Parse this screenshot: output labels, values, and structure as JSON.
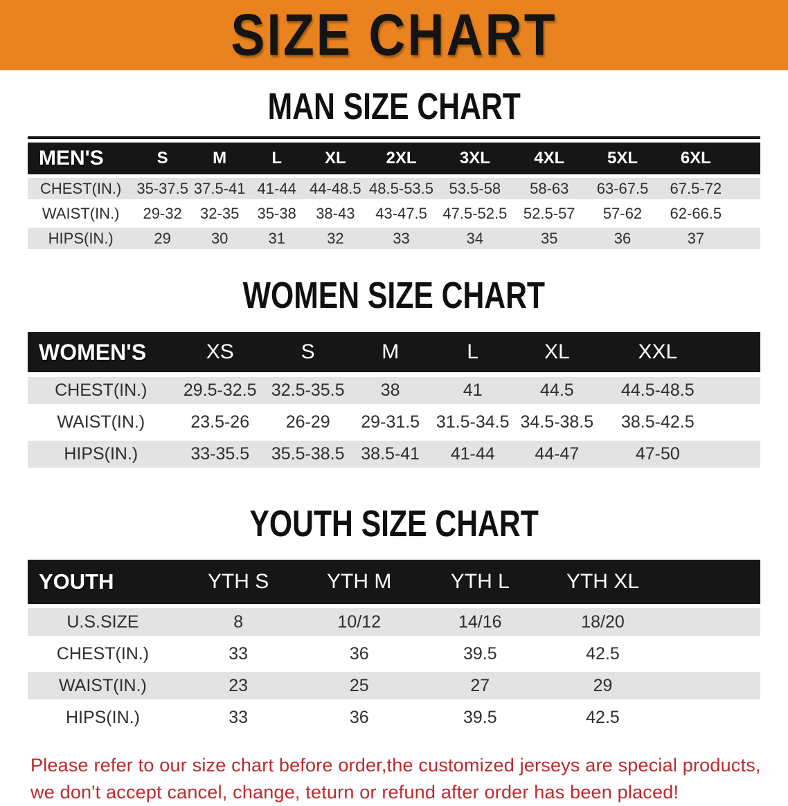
{
  "banner": {
    "title": "SIZE CHART",
    "bg_color": "#E8831F"
  },
  "sections": [
    {
      "heading": "MAN SIZE CHART",
      "table": {
        "label": "MEN'S",
        "columns": [
          "S",
          "M",
          "L",
          "XL",
          "2XL",
          "3XL",
          "4XL",
          "5XL",
          "6XL"
        ],
        "rows": [
          {
            "label": "CHEST(IN.)",
            "values": [
              "35-37.5",
              "37.5-41",
              "41-44",
              "44-48.5",
              "48.5-53.5",
              "53.5-58",
              "58-63",
              "63-67.5",
              "67.5-72"
            ]
          },
          {
            "label": "WAIST(IN.)",
            "values": [
              "29-32",
              "32-35",
              "35-38",
              "38-43",
              "43-47.5",
              "47.5-52.5",
              "52.5-57",
              "57-62",
              "62-66.5"
            ]
          },
          {
            "label": "HIPS(IN.)",
            "values": [
              "29",
              "30",
              "31",
              "32",
              "33",
              "34",
              "35",
              "36",
              "37"
            ]
          }
        ]
      }
    },
    {
      "heading": "WOMEN SIZE CHART",
      "table": {
        "label": "WOMEN'S",
        "columns": [
          "XS",
          "S",
          "M",
          "L",
          "XL",
          "XXL"
        ],
        "rows": [
          {
            "label": "CHEST(IN.)",
            "values": [
              "29.5-32.5",
              "32.5-35.5",
              "38",
              "41",
              "44.5",
              "44.5-48.5"
            ]
          },
          {
            "label": "WAIST(IN.)",
            "values": [
              "23.5-26",
              "26-29",
              "29-31.5",
              "31.5-34.5",
              "34.5-38.5",
              "38.5-42.5"
            ]
          },
          {
            "label": "HIPS(IN.)",
            "values": [
              "33-35.5",
              "35.5-38.5",
              "38.5-41",
              "41-44",
              "44-47",
              "47-50"
            ]
          }
        ]
      }
    },
    {
      "heading": "YOUTH SIZE CHART",
      "table": {
        "label": "YOUTH",
        "columns": [
          "YTH S",
          "YTH M",
          "YTH L",
          "YTH XL"
        ],
        "rows": [
          {
            "label": "U.S.SIZE",
            "values": [
              "8",
              "10/12",
              "14/16",
              "18/20"
            ]
          },
          {
            "label": "CHEST(IN.)",
            "values": [
              "33",
              "36",
              "39.5",
              "42.5"
            ]
          },
          {
            "label": "WAIST(IN.)",
            "values": [
              "23",
              "25",
              "27",
              "29"
            ]
          },
          {
            "label": "HIPS(IN.)",
            "values": [
              "33",
              "36",
              "39.5",
              "42.5"
            ]
          }
        ]
      }
    }
  ],
  "footer": {
    "lines": [
      "Please refer to our size chart before order,the customized jerseys are special products,",
      "we don't accept cancel, change, teturn or refund after order has been placed!"
    ],
    "text_color": "#BC2A2C"
  },
  "colors": {
    "banner_bg": "#E8831F",
    "table_header_bg": "#161616",
    "row_alt_bg": "#E3E3E3",
    "footer_text": "#BC2A2C"
  }
}
